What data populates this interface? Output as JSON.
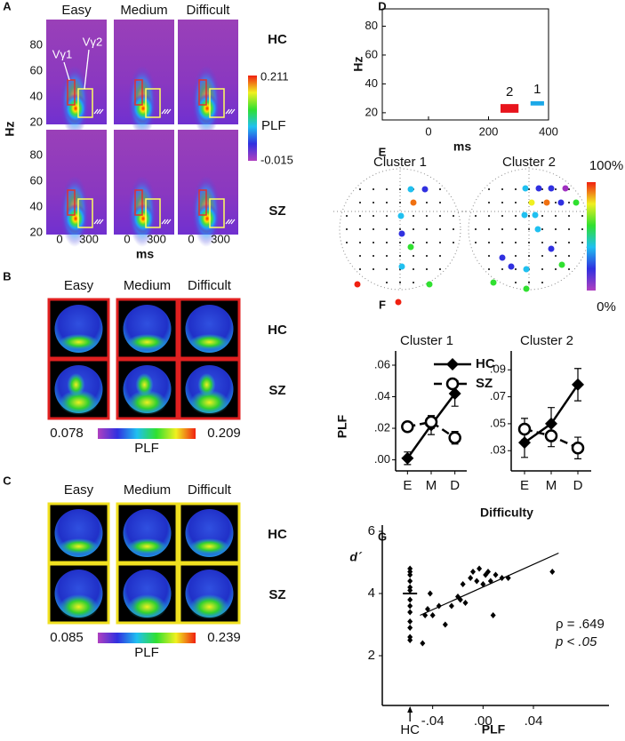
{
  "panel_labels": [
    "A",
    "B",
    "C",
    "D",
    "E",
    "F",
    "G"
  ],
  "panel_a": {
    "columns": [
      "Easy",
      "Medium",
      "Difficult"
    ],
    "rows": [
      "HC",
      "SZ"
    ],
    "y_label": "Hz",
    "x_label": "ms",
    "yticks": [
      80,
      60,
      40,
      20
    ],
    "xticks": [
      0,
      300
    ],
    "colorbar": {
      "max": 0.211,
      "label": "PLF",
      "min": -0.015
    },
    "roi_labels": [
      "Vγ1",
      "Vγ2"
    ]
  },
  "panel_b": {
    "columns": [
      "Easy",
      "Medium",
      "Difficult"
    ],
    "rows": [
      "HC",
      "SZ"
    ],
    "colorbar": {
      "min": 0.078,
      "label": "PLF",
      "max": 0.209
    }
  },
  "panel_c": {
    "columns": [
      "Easy",
      "Medium",
      "Difficult"
    ],
    "rows": [
      "HC",
      "SZ"
    ],
    "colorbar": {
      "min": 0.085,
      "label": "PLF",
      "max": 0.239
    }
  },
  "panel_e": {
    "titles": [
      "Cluster 1",
      "Cluster 2"
    ],
    "colorbar": {
      "max": "100%",
      "min": "0%"
    },
    "dots": [
      [
        25,
        10,
        80,
        25,
        20,
        45,
        25,
        95,
        95,
        45
      ],
      [
        30,
        10,
        10,
        5,
        70,
        75,
        10,
        45,
        40,
        35,
        25,
        10,
        10,
        45,
        40,
        50,
        45,
        15
      ]
    ]
  },
  "panel_f": {
    "x_label": "Difficulty"
  },
  "chart_data": [
    {
      "type": "interval",
      "x_label": "ms",
      "y_label": "Hz",
      "xlim": [
        -154,
        400
      ],
      "xticks": [
        0,
        200,
        400
      ],
      "ylim": [
        15,
        92
      ],
      "yticks": [
        80,
        60,
        40,
        20
      ],
      "series": [
        {
          "name": "2",
          "color": "#e8141c",
          "x": [
            240,
            300
          ],
          "y": [
            20,
            26
          ]
        },
        {
          "name": "1",
          "color": "#1ca8e8",
          "x": [
            340,
            385
          ],
          "y": [
            25,
            28
          ]
        }
      ]
    },
    {
      "type": "line",
      "title": "Cluster 1",
      "y_label": "PLF",
      "legend": true,
      "categories": [
        "E",
        "M",
        "D"
      ],
      "ylim": [
        -0.007,
        0.069
      ],
      "yticks": [
        {
          "value": 0.06,
          "label": ".06"
        },
        {
          "value": 0.04,
          "label": ".04"
        },
        {
          "value": 0.02,
          "label": ".02"
        },
        {
          "value": 0,
          "label": ".00"
        }
      ],
      "series": [
        {
          "name": "HC",
          "marker": "diamond",
          "dashed": false,
          "values": [
            0.001,
            0.022,
            0.042
          ],
          "errors": [
            0.004,
            0.006,
            0.008
          ]
        },
        {
          "name": "SZ",
          "marker": "open-circle",
          "dashed": true,
          "values": [
            0.021,
            0.024,
            0.014
          ],
          "errors": [
            0.003,
            0.004,
            0.004
          ]
        }
      ]
    },
    {
      "type": "line",
      "title": "Cluster 2",
      "legend": false,
      "categories": [
        "E",
        "M",
        "D"
      ],
      "ylim": [
        0.015,
        0.104
      ],
      "yticks": [
        {
          "value": 0.09,
          "label": ".09"
        },
        {
          "value": 0.07,
          "label": ".07"
        },
        {
          "value": 0.05,
          "label": ".05"
        },
        {
          "value": 0.03,
          "label": ".03"
        }
      ],
      "series": [
        {
          "name": "HC",
          "marker": "diamond",
          "dashed": false,
          "values": [
            0.036,
            0.05,
            0.079
          ],
          "errors": [
            0.011,
            0.012,
            0.012
          ]
        },
        {
          "name": "SZ",
          "marker": "open-circle",
          "dashed": true,
          "values": [
            0.046,
            0.041,
            0.032
          ],
          "errors": [
            0.008,
            0.008,
            0.008
          ]
        }
      ]
    },
    {
      "type": "scatter",
      "x_label": "PLF",
      "y_label": "d´",
      "xlim": [
        -0.08,
        0.1
      ],
      "ylim": [
        0.4,
        6.2
      ],
      "xticks": [
        {
          "value": -0.04,
          "label": "-.04"
        },
        {
          "value": 0,
          "label": ".00"
        },
        {
          "value": 0.04,
          "label": ".04"
        }
      ],
      "yticks": [
        6,
        4,
        2
      ],
      "annotations": [
        "ρ = .649",
        "p < .05"
      ],
      "series": [
        {
          "x": [
            -0.048,
            -0.046,
            -0.044,
            -0.042,
            -0.04,
            -0.035,
            -0.03,
            -0.025,
            -0.02,
            -0.018,
            -0.016,
            -0.014,
            -0.01,
            -0.008,
            -0.005,
            -0.003,
            0.0,
            0.002,
            0.004,
            0.006,
            0.008,
            0.01,
            0.015,
            0.02,
            0.055
          ],
          "values": [
            2.4,
            3.3,
            3.5,
            4.0,
            3.3,
            3.6,
            3.0,
            3.6,
            3.9,
            3.8,
            4.3,
            3.7,
            4.5,
            4.7,
            4.4,
            4.8,
            4.3,
            4.6,
            4.7,
            4.4,
            3.3,
            4.6,
            4.5,
            4.5,
            4.7
          ]
        }
      ],
      "hc_group": {
        "label": "HC",
        "x": -0.058,
        "mean": 4.0,
        "values": [
          4.8,
          4.7,
          4.6,
          4.4,
          4.2,
          4.1,
          3.8,
          3.6,
          3.4,
          3.1,
          2.9,
          2.6,
          2.5
        ]
      },
      "fit": {
        "x": [
          -0.05,
          0.06
        ],
        "values": [
          3.3,
          5.3
        ]
      }
    }
  ]
}
